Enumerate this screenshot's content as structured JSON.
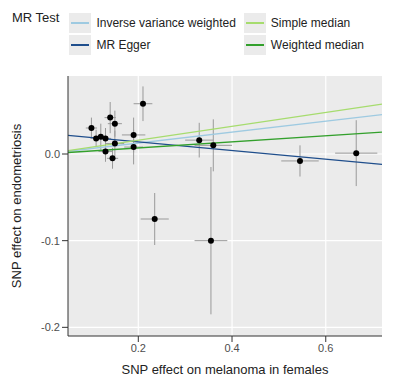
{
  "chart_data": {
    "type": "scatter",
    "x_label": "SNP effect on melanoma in females",
    "y_label": "SNP effect on endometriosis",
    "legend": "top",
    "legend_title": "MR Test",
    "grid": true,
    "xlim": [
      0.05,
      0.72
    ],
    "xticks": [
      0.2,
      0.4,
      0.6
    ],
    "ylim": [
      -0.21,
      0.09
    ],
    "yticks": [
      -0.2,
      -0.1,
      {
        "value": 0,
        "label": "0.0"
      }
    ],
    "points": {
      "color": "#000000",
      "x": [
        0.1,
        0.11,
        0.12,
        0.13,
        0.13,
        0.14,
        0.145,
        0.15,
        0.15,
        0.19,
        0.19,
        0.21,
        0.235,
        0.33,
        0.36,
        0.355,
        0.545,
        0.665
      ],
      "y": [
        0.03,
        0.018,
        0.02,
        0.018,
        0.003,
        0.042,
        -0.005,
        0.035,
        0.012,
        0.008,
        0.022,
        0.058,
        -0.075,
        0.016,
        0.01,
        -0.1,
        -0.008,
        0.001
      ],
      "x_error": [
        0.012,
        0.012,
        0.015,
        0.012,
        0.015,
        0.012,
        0.012,
        0.015,
        0.02,
        0.02,
        0.025,
        0.02,
        0.03,
        0.03,
        0.04,
        0.035,
        0.04,
        0.045
      ],
      "y_error": [
        0.012,
        0.01,
        0.015,
        0.012,
        0.012,
        0.018,
        0.012,
        0.015,
        0.015,
        0.02,
        0.02,
        0.02,
        0.03,
        0.02,
        0.03,
        0.085,
        0.018,
        0.038
      ]
    },
    "series": [
      {
        "name": "Inverse variance weighted",
        "color": "#9ecae1",
        "type": "line",
        "intercept": 0,
        "slope": 0.063
      },
      {
        "name": "MR Egger",
        "color": "#1f4e8c",
        "type": "line",
        "intercept": 0.024,
        "slope": -0.05
      },
      {
        "name": "Simple median",
        "color": "#a6dc6e",
        "type": "line",
        "intercept": 0,
        "slope": 0.08
      },
      {
        "name": "Weighted median",
        "color": "#33a02c",
        "type": "line",
        "intercept": 0,
        "slope": 0.035
      }
    ]
  }
}
